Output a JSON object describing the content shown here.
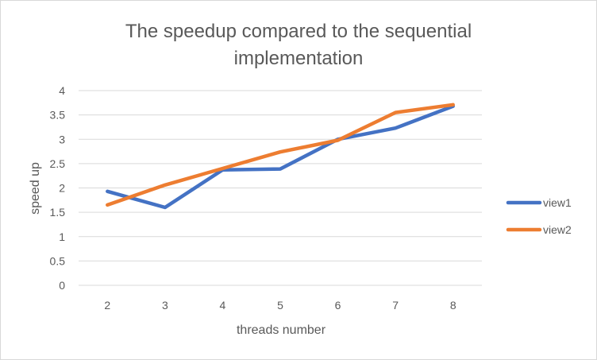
{
  "chart_data": {
    "type": "line",
    "title_lines": [
      "The speedup compared to the sequential",
      "implementation"
    ],
    "xlabel": "threads number",
    "ylabel": "speed up",
    "categories": [
      "2",
      "3",
      "4",
      "5",
      "6",
      "7",
      "8"
    ],
    "ylim": [
      0,
      4
    ],
    "yticks": [
      "0",
      "0.5",
      "1",
      "1.5",
      "2",
      "2.5",
      "3",
      "3.5",
      "4"
    ],
    "grid": true,
    "legend_position": "right",
    "series": [
      {
        "name": "view1",
        "color": "#4472C4",
        "values": [
          1.93,
          1.6,
          2.37,
          2.39,
          3.0,
          3.23,
          3.68
        ]
      },
      {
        "name": "view2",
        "color": "#ED7D31",
        "values": [
          1.65,
          2.06,
          2.4,
          2.74,
          2.98,
          3.55,
          3.71
        ]
      }
    ]
  }
}
